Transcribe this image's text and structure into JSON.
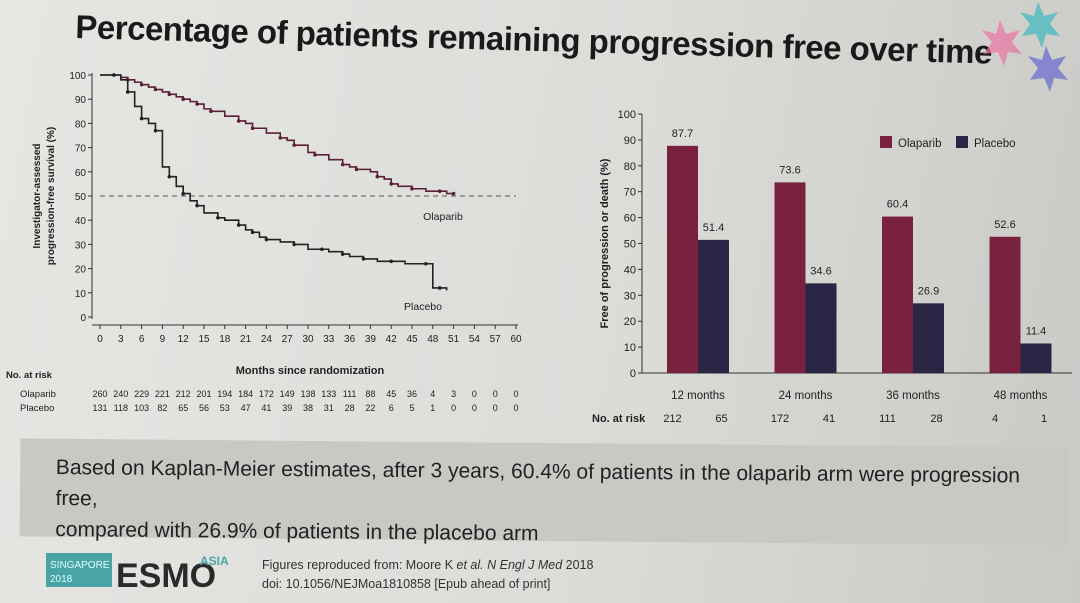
{
  "slide": {
    "title": "Percentage of patients remaining progression free over time",
    "summary_line1": "Based on Kaplan-Meier estimates, after 3 years, 60.4% of patients in the olaparib arm were progression free,",
    "summary_line2": "compared with 26.9% of patients in the placebo arm",
    "footer_ref_line1_prefix": "Figures reproduced from: Moore K ",
    "footer_ref_line1_etal": "et al.",
    "footer_ref_line1_journal": " N Engl J Med",
    "footer_ref_line1_year": " 2018",
    "footer_ref_line2": "doi: 10.1056/NEJMoa1810858 [Epub ahead of print]",
    "logo_location": "SINGAPORE",
    "logo_year": "2018",
    "logo_name": "ESMO",
    "logo_suffix": "ASIA"
  },
  "colors": {
    "olaparib": "#7b2140",
    "placebo": "#2a2545",
    "text": "#1a1a1a"
  },
  "chart_data": [
    {
      "type": "line",
      "ylabel_line1": "Investigator-assessed",
      "ylabel_line2": "progression-free survival (%)",
      "xlabel": "Months since randomization",
      "xlim": [
        0,
        60
      ],
      "ylim": [
        0,
        100
      ],
      "xticks": [
        0,
        3,
        6,
        9,
        12,
        15,
        18,
        21,
        24,
        27,
        30,
        33,
        36,
        39,
        42,
        45,
        48,
        51,
        54,
        57,
        60
      ],
      "yticks": [
        0,
        10,
        20,
        30,
        40,
        50,
        60,
        70,
        80,
        90,
        100
      ],
      "reference_line_y": 50,
      "series": [
        {
          "name": "Olaparib",
          "points": [
            [
              0,
              100
            ],
            [
              2,
              100
            ],
            [
              3,
              99
            ],
            [
              4,
              98
            ],
            [
              5,
              97
            ],
            [
              6,
              96
            ],
            [
              7,
              95
            ],
            [
              8,
              94
            ],
            [
              9,
              93
            ],
            [
              10,
              92
            ],
            [
              11,
              91
            ],
            [
              12,
              90
            ],
            [
              13,
              89
            ],
            [
              14,
              88
            ],
            [
              15,
              86
            ],
            [
              16,
              85
            ],
            [
              18,
              83
            ],
            [
              20,
              81
            ],
            [
              21,
              80
            ],
            [
              22,
              78
            ],
            [
              24,
              76
            ],
            [
              26,
              74
            ],
            [
              27,
              73
            ],
            [
              28,
              71
            ],
            [
              30,
              68
            ],
            [
              31,
              67
            ],
            [
              33,
              65
            ],
            [
              35,
              63
            ],
            [
              36,
              62
            ],
            [
              37,
              61
            ],
            [
              39,
              60
            ],
            [
              40,
              58
            ],
            [
              41,
              57
            ],
            [
              42,
              55
            ],
            [
              43,
              54
            ],
            [
              45,
              53
            ],
            [
              47,
              52
            ],
            [
              49,
              52
            ],
            [
              50,
              51
            ],
            [
              51,
              51
            ]
          ]
        },
        {
          "name": "Placebo",
          "points": [
            [
              0,
              100
            ],
            [
              2,
              100
            ],
            [
              3,
              98
            ],
            [
              4,
              93
            ],
            [
              5,
              87
            ],
            [
              6,
              82
            ],
            [
              7,
              80
            ],
            [
              8,
              77
            ],
            [
              9,
              62
            ],
            [
              10,
              58
            ],
            [
              11,
              54
            ],
            [
              12,
              51
            ],
            [
              13,
              48
            ],
            [
              14,
              46
            ],
            [
              15,
              43
            ],
            [
              17,
              41
            ],
            [
              18,
              40
            ],
            [
              20,
              38
            ],
            [
              21,
              36
            ],
            [
              22,
              35
            ],
            [
              23,
              33
            ],
            [
              24,
              32
            ],
            [
              26,
              31
            ],
            [
              28,
              30
            ],
            [
              30,
              28
            ],
            [
              32,
              28
            ],
            [
              33,
              27
            ],
            [
              35,
              26
            ],
            [
              36,
              25
            ],
            [
              38,
              24
            ],
            [
              40,
              23
            ],
            [
              42,
              23
            ],
            [
              44,
              22
            ],
            [
              47,
              22
            ],
            [
              48,
              12
            ],
            [
              49,
              12
            ],
            [
              50,
              11
            ]
          ]
        }
      ],
      "at_risk": {
        "title": "No. at risk",
        "rows": [
          {
            "label": "Olaparib",
            "values": [
              "260",
              "240",
              "229",
              "221",
              "212",
              "201",
              "194",
              "184",
              "172",
              "149",
              "138",
              "133",
              "111",
              "88",
              "45",
              "36",
              "4",
              "3",
              "0",
              "0",
              "0"
            ]
          },
          {
            "label": "Placebo",
            "values": [
              "131",
              "118",
              "103",
              "82",
              "65",
              "56",
              "53",
              "47",
              "41",
              "39",
              "38",
              "31",
              "28",
              "22",
              "6",
              "5",
              "1",
              "0",
              "0",
              "0",
              "0"
            ]
          }
        ]
      }
    },
    {
      "type": "bar",
      "ylabel": "Free of progression or death (%)",
      "ylim": [
        0,
        100
      ],
      "yticks": [
        0,
        10,
        20,
        30,
        40,
        50,
        60,
        70,
        80,
        90,
        100
      ],
      "categories": [
        "12 months",
        "24 months",
        "36 months",
        "48 months"
      ],
      "series": [
        {
          "name": "Olaparib",
          "values": [
            87.7,
            73.6,
            60.4,
            52.6
          ]
        },
        {
          "name": "Placebo",
          "values": [
            51.4,
            34.6,
            26.9,
            11.4
          ]
        }
      ],
      "legend": "top-right",
      "at_risk": {
        "title": "No. at risk",
        "olaparib": [
          "212",
          "172",
          "111",
          "4"
        ],
        "placebo": [
          "65",
          "41",
          "28",
          "1"
        ]
      }
    }
  ]
}
